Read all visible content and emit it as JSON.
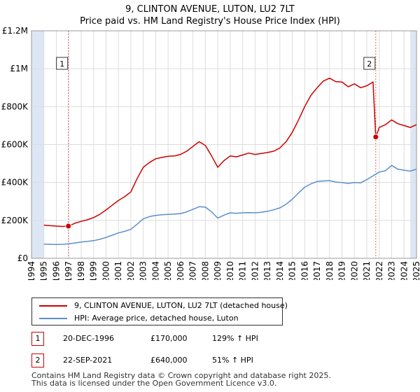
{
  "chart_data": {
    "type": "line",
    "title": "9, CLINTON AVENUE, LUTON, LU2 7LT",
    "subtitle": "Price paid vs. HM Land Registry's House Price Index (HPI)",
    "xlim": [
      1994,
      2025
    ],
    "ylim": [
      0,
      1200000
    ],
    "x_ticks": [
      1994,
      1995,
      1996,
      1997,
      1998,
      1999,
      2000,
      2001,
      2002,
      2003,
      2004,
      2005,
      2006,
      2007,
      2008,
      2009,
      2010,
      2011,
      2012,
      2013,
      2014,
      2015,
      2016,
      2017,
      2018,
      2019,
      2020,
      2021,
      2022,
      2023,
      2024,
      2025
    ],
    "y_ticks": [
      {
        "value": 0,
        "label": "£0"
      },
      {
        "value": 200000,
        "label": "£200K"
      },
      {
        "value": 400000,
        "label": "£400K"
      },
      {
        "value": 600000,
        "label": "£600K"
      },
      {
        "value": 800000,
        "label": "£800K"
      },
      {
        "value": 1000000,
        "label": "£1M"
      },
      {
        "value": 1200000,
        "label": "£1.2M"
      }
    ],
    "grid": true,
    "colors": {
      "property": "#cc0000",
      "hpi": "#5a8fcc",
      "shade": "#dde6f4",
      "vline": "#e06060",
      "grid": "#dddddd"
    },
    "series": [
      {
        "name": "9, CLINTON AVENUE, LUTON, LU2 7LT (detached house)",
        "key": "property",
        "x": [
          1995.0,
          1995.5,
          1996.0,
          1996.5,
          1996.97,
          1997.5,
          1998.0,
          1998.5,
          1999.0,
          1999.5,
          2000.0,
          2000.5,
          2001.0,
          2001.5,
          2002.0,
          2002.5,
          2003.0,
          2003.5,
          2004.0,
          2004.5,
          2005.0,
          2005.5,
          2006.0,
          2006.5,
          2007.0,
          2007.5,
          2008.0,
          2008.5,
          2009.0,
          2009.5,
          2010.0,
          2010.5,
          2011.0,
          2011.5,
          2012.0,
          2012.5,
          2013.0,
          2013.5,
          2014.0,
          2014.5,
          2015.0,
          2015.5,
          2016.0,
          2016.5,
          2017.0,
          2017.5,
          2018.0,
          2018.5,
          2019.0,
          2019.5,
          2020.0,
          2020.5,
          2021.0,
          2021.5,
          2021.72,
          2022.0,
          2022.5,
          2023.0,
          2023.5,
          2024.0,
          2024.5,
          2025.0
        ],
        "y": [
          175000,
          172000,
          170000,
          168000,
          170000,
          185000,
          195000,
          203000,
          215000,
          232000,
          255000,
          280000,
          305000,
          325000,
          350000,
          420000,
          480000,
          505000,
          525000,
          532000,
          538000,
          540000,
          548000,
          565000,
          590000,
          615000,
          595000,
          540000,
          480000,
          515000,
          540000,
          535000,
          545000,
          555000,
          548000,
          553000,
          558000,
          565000,
          582000,
          615000,
          665000,
          730000,
          800000,
          860000,
          900000,
          935000,
          950000,
          932000,
          930000,
          905000,
          920000,
          900000,
          910000,
          930000,
          640000,
          690000,
          705000,
          730000,
          710000,
          700000,
          690000,
          705000
        ]
      },
      {
        "name": "HPI: Average price, detached house, Luton",
        "key": "hpi",
        "x": [
          1995.0,
          1995.5,
          1996.0,
          1996.5,
          1997.0,
          1997.5,
          1998.0,
          1998.5,
          1999.0,
          1999.5,
          2000.0,
          2000.5,
          2001.0,
          2001.5,
          2002.0,
          2002.5,
          2003.0,
          2003.5,
          2004.0,
          2004.5,
          2005.0,
          2005.5,
          2006.0,
          2006.5,
          2007.0,
          2007.5,
          2008.0,
          2008.5,
          2009.0,
          2009.5,
          2010.0,
          2010.5,
          2011.0,
          2011.5,
          2012.0,
          2012.5,
          2013.0,
          2013.5,
          2014.0,
          2014.5,
          2015.0,
          2015.5,
          2016.0,
          2016.5,
          2017.0,
          2017.5,
          2018.0,
          2018.5,
          2019.0,
          2019.5,
          2020.0,
          2020.5,
          2021.0,
          2021.5,
          2022.0,
          2022.5,
          2023.0,
          2023.5,
          2024.0,
          2024.5,
          2025.0
        ],
        "y": [
          75000,
          74000,
          73000,
          74000,
          76000,
          81000,
          86000,
          89000,
          93000,
          100000,
          110000,
          122000,
          134000,
          142000,
          153000,
          180000,
          208000,
          220000,
          226000,
          230000,
          232000,
          233000,
          236000,
          245000,
          258000,
          272000,
          270000,
          245000,
          212000,
          228000,
          240000,
          237000,
          240000,
          241000,
          240000,
          243000,
          248000,
          256000,
          266000,
          285000,
          312000,
          345000,
          375000,
          393000,
          405000,
          408000,
          410000,
          402000,
          400000,
          395000,
          400000,
          398000,
          415000,
          435000,
          455000,
          462000,
          490000,
          470000,
          465000,
          460000,
          470000
        ]
      }
    ],
    "annotations": [
      {
        "label": "1",
        "x": 1996.97,
        "y": 170000
      },
      {
        "label": "2",
        "x": 2021.72,
        "y": 640000
      }
    ],
    "shaded_ranges": [
      [
        1994,
        1995
      ],
      [
        2024.5,
        2025
      ]
    ]
  },
  "legend": {
    "property_label": "9, CLINTON AVENUE, LUTON, LU2 7LT (detached house)",
    "hpi_label": "HPI: Average price, detached house, Luton"
  },
  "transactions": [
    {
      "badge": "1",
      "date": "20-DEC-1996",
      "price": "£170,000",
      "hpi": "129% ↑ HPI"
    },
    {
      "badge": "2",
      "date": "22-SEP-2021",
      "price": "£640,000",
      "hpi": "51% ↑ HPI"
    }
  ],
  "footer": {
    "line1": "Contains HM Land Registry data © Crown copyright and database right 2025.",
    "line2": "This data is licensed under the Open Government Licence v3.0."
  }
}
